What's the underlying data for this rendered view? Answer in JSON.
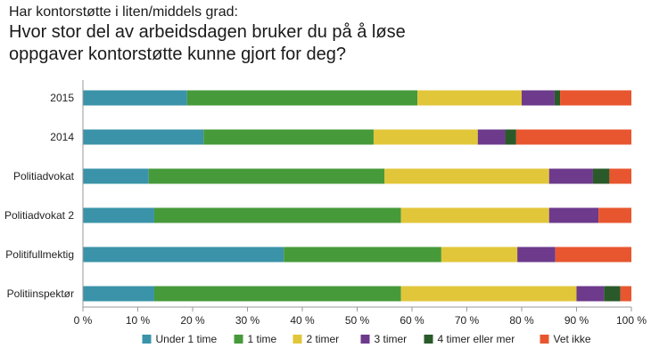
{
  "chart_data": {
    "type": "bar",
    "orientation": "horizontal",
    "stacked": true,
    "subtitle": "Har kontorstøtte i liten/middels grad:",
    "title": "Hvor stor del av arbeidsdagen bruker du på å løse oppgaver kontorstøtte kunne gjort for deg?",
    "title_lines": [
      "Hvor stor del av arbeidsdagen bruker du på å løse",
      "oppgaver kontorstøtte kunne gjort for deg?"
    ],
    "categories": [
      "2015",
      "2014",
      "Politiadvokat",
      "Politiadvokat 2",
      "Politifullmektig",
      "Politiinspektør"
    ],
    "series": [
      {
        "name": "Under 1 time",
        "color": "#3a93a8",
        "values": [
          19,
          22,
          12,
          13,
          37,
          13
        ]
      },
      {
        "name": "1 time",
        "color": "#469a39",
        "values": [
          42,
          31,
          43,
          45,
          29,
          45
        ]
      },
      {
        "name": "2 timer",
        "color": "#e1c63a",
        "values": [
          19,
          19,
          30,
          27,
          14,
          32
        ]
      },
      {
        "name": "3 timer",
        "color": "#6d3a8c",
        "values": [
          6,
          5,
          8,
          9,
          7,
          5
        ]
      },
      {
        "name": "4 timer eller mer",
        "color": "#2a5a2a",
        "values": [
          1,
          2,
          3,
          0,
          0,
          3
        ]
      },
      {
        "name": "Vet ikke",
        "color": "#e8562f",
        "values": [
          13,
          21,
          4,
          6,
          14,
          2
        ]
      }
    ],
    "xlim": [
      0,
      100
    ],
    "xticks": [
      "0 %",
      "10 %",
      "20 %",
      "30 %",
      "40 %",
      "50 %",
      "60 %",
      "70 %",
      "80 %",
      "90 %",
      "100 %"
    ],
    "legend_position": "bottom",
    "grid": false
  }
}
